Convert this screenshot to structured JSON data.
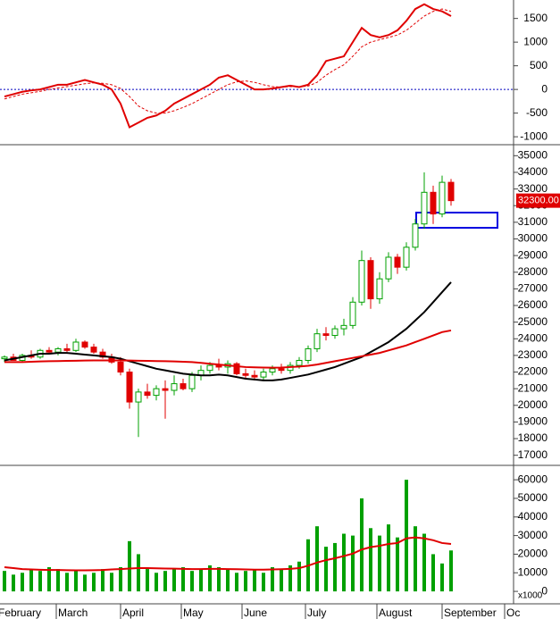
{
  "chart_data": [
    {
      "type": "line",
      "ylim": [
        -1130,
        1890
      ],
      "yticks": [
        -1000,
        -500,
        0,
        500,
        1000,
        1500
      ],
      "reference_line": 0,
      "reference_color": "#0000c0",
      "series": [
        {
          "color": "#e00000",
          "values": [
            -150,
            -100,
            -50,
            -20,
            0,
            50,
            100,
            100,
            150,
            200,
            150,
            100,
            0,
            -300,
            -800,
            -700,
            -600,
            -550,
            -450,
            -300,
            -200,
            -100,
            0,
            100,
            250,
            300,
            200,
            100,
            0,
            0,
            20,
            50,
            80,
            50,
            100,
            300,
            600,
            650,
            700,
            1000,
            1300,
            1150,
            1100,
            1150,
            1250,
            1450,
            1700,
            1800,
            1700,
            1650,
            1550
          ]
        },
        {
          "color": "#e00000",
          "dashed": true,
          "values": [
            -200,
            -150,
            -100,
            -70,
            -40,
            0,
            30,
            60,
            90,
            120,
            140,
            130,
            100,
            20,
            -150,
            -350,
            -450,
            -500,
            -500,
            -450,
            -380,
            -300,
            -200,
            -100,
            0,
            100,
            160,
            180,
            150,
            100,
            60,
            50,
            60,
            60,
            70,
            150,
            300,
            420,
            520,
            700,
            900,
            1000,
            1050,
            1100,
            1150,
            1250,
            1400,
            1550,
            1650,
            1700,
            1650
          ]
        }
      ]
    },
    {
      "type": "candlestick",
      "ylim": [
        16500,
        35500
      ],
      "yticks": [
        17000,
        18000,
        19000,
        20000,
        21000,
        22000,
        23000,
        24000,
        25000,
        26000,
        27000,
        28000,
        29000,
        30000,
        31000,
        32000,
        33000,
        34000,
        35000
      ],
      "up_color": "#00a000",
      "down_color": "#e00000",
      "last_price_label": "32300.00",
      "open": [
        22800,
        22900,
        22700,
        23000,
        22900,
        23300,
        23200,
        23400,
        23300,
        23800,
        23500,
        23200,
        22900,
        22600,
        22000,
        20200,
        20800,
        20600,
        21000,
        20900,
        21300,
        21000,
        21800,
        22100,
        22400,
        22300,
        22500,
        21900,
        21800,
        21700,
        22000,
        22200,
        22100,
        22400,
        22700,
        23400,
        24300,
        24200,
        24600,
        24800,
        26200,
        28700,
        26400,
        27600,
        28900,
        28300,
        29500,
        30900,
        32800,
        31500,
        33400
      ],
      "high": [
        23000,
        23100,
        23100,
        23300,
        23400,
        23500,
        23500,
        23700,
        24000,
        23900,
        23700,
        23400,
        23100,
        22900,
        22200,
        21000,
        21300,
        21200,
        21500,
        21800,
        21600,
        22000,
        22400,
        22600,
        22800,
        22700,
        22600,
        22200,
        22100,
        22200,
        22400,
        22500,
        22600,
        22900,
        23600,
        24600,
        24700,
        24800,
        25200,
        26500,
        29300,
        28900,
        28000,
        29200,
        29100,
        29800,
        31200,
        34000,
        33200,
        33800,
        33600
      ],
      "low": [
        22600,
        22700,
        22600,
        22800,
        22800,
        23100,
        23000,
        23200,
        23200,
        23400,
        23100,
        22800,
        22500,
        21800,
        19800,
        18100,
        20400,
        20300,
        19200,
        20600,
        20900,
        20800,
        21500,
        21900,
        22100,
        21900,
        21800,
        21600,
        21500,
        21500,
        21800,
        21900,
        21900,
        22200,
        22500,
        23200,
        23900,
        24000,
        24200,
        24600,
        26000,
        25800,
        26100,
        27400,
        27900,
        28100,
        29300,
        30600,
        30900,
        31300,
        32000
      ],
      "close": [
        22900,
        22700,
        23000,
        22900,
        23300,
        23200,
        23400,
        23300,
        23800,
        23500,
        23200,
        22900,
        22600,
        22000,
        20200,
        20800,
        20600,
        21000,
        20900,
        21300,
        21000,
        21800,
        22100,
        22400,
        22300,
        22500,
        21900,
        21800,
        21700,
        22000,
        22200,
        22100,
        22400,
        22700,
        23400,
        24300,
        24200,
        24600,
        24800,
        26200,
        28700,
        26400,
        27600,
        28900,
        28300,
        29500,
        30900,
        32800,
        31500,
        33400,
        32300
      ],
      "series": [
        {
          "color": "#000000",
          "values": [
            22700,
            22800,
            22900,
            23000,
            23100,
            23100,
            23150,
            23150,
            23100,
            23050,
            23000,
            22950,
            22900,
            22800,
            22650,
            22500,
            22350,
            22200,
            22100,
            22000,
            21900,
            21850,
            21800,
            21800,
            21850,
            21800,
            21700,
            21600,
            21550,
            21500,
            21500,
            21550,
            21650,
            21750,
            21850,
            22000,
            22150,
            22300,
            22500,
            22700,
            22900,
            23200,
            23500,
            23800,
            24200,
            24600,
            25100,
            25600,
            26200,
            26800,
            27400
          ]
        },
        {
          "color": "#e00000",
          "values": [
            22600,
            22600,
            22600,
            22620,
            22640,
            22650,
            22660,
            22670,
            22680,
            22690,
            22700,
            22700,
            22700,
            22700,
            22690,
            22680,
            22670,
            22660,
            22650,
            22640,
            22620,
            22600,
            22550,
            22500,
            22450,
            22400,
            22350,
            22300,
            22280,
            22270,
            22260,
            22270,
            22300,
            22330,
            22380,
            22450,
            22550,
            22650,
            22750,
            22850,
            22950,
            23050,
            23150,
            23300,
            23450,
            23600,
            23800,
            24000,
            24200,
            24400,
            24500
          ]
        }
      ]
    },
    {
      "type": "bar",
      "ylim": [
        -3800,
        66300
      ],
      "yticks": [
        0,
        10000,
        20000,
        30000,
        40000,
        50000,
        60000
      ],
      "unit_label": "x1000",
      "color": "#00a000",
      "x": [
        0.5,
        1.5,
        2.5,
        3.5,
        4.5,
        5.5,
        6.5,
        7.5,
        8.5,
        9.5,
        10.5,
        11.5,
        12.5,
        13.5,
        14.5,
        15.5,
        16.5,
        17.5,
        18.5,
        19.5,
        20.5,
        21.5,
        22.5,
        23.5,
        24.5,
        25.5,
        26.5,
        27.5,
        28.5,
        29.5,
        30.5,
        31.5,
        32.5,
        33.5,
        34.5,
        35.5,
        36.5,
        37.5,
        38.5,
        39.5,
        40.5,
        41.5,
        42.5,
        43.5,
        44.5,
        45.5,
        46.5,
        47.5,
        48.5,
        49.5,
        50.5
      ],
      "xlim": [
        0,
        57.5
      ],
      "xticks": [
        {
          "value": -0.4,
          "label": "February"
        },
        {
          "value": 6.3,
          "label": "March"
        },
        {
          "value": 13.5,
          "label": "April"
        },
        {
          "value": 20.3,
          "label": "May"
        },
        {
          "value": 27.1,
          "label": "June"
        },
        {
          "value": 34.2,
          "label": "July"
        },
        {
          "value": 42.2,
          "label": "August"
        },
        {
          "value": 49.5,
          "label": "September"
        },
        {
          "value": 56.5,
          "label": "Oc"
        }
      ],
      "values": [
        11000,
        9000,
        10000,
        12000,
        11000,
        13000,
        12000,
        10000,
        11000,
        9000,
        10000,
        12000,
        10000,
        13000,
        27000,
        20000,
        12000,
        10000,
        11000,
        12000,
        13000,
        11000,
        12000,
        14000,
        13000,
        12000,
        10000,
        11000,
        12000,
        10000,
        13000,
        12000,
        14000,
        16000,
        28000,
        35000,
        24000,
        26000,
        31000,
        30000,
        50000,
        34000,
        30000,
        36000,
        29000,
        60000,
        35000,
        31000,
        20000,
        15000,
        22000
      ],
      "series": [
        {
          "color": "#e00000",
          "values": [
            13000,
            12500,
            12000,
            11800,
            11600,
            11500,
            11500,
            11400,
            11300,
            11300,
            11400,
            11500,
            11800,
            12000,
            12300,
            12500,
            12500,
            12400,
            12300,
            12200,
            12100,
            12000,
            12000,
            12100,
            12100,
            12000,
            11900,
            11800,
            11700,
            11700,
            11800,
            11900,
            12100,
            12500,
            13800,
            15500,
            16800,
            17800,
            19000,
            20300,
            22500,
            23800,
            24500,
            25500,
            26000,
            28500,
            29000,
            28500,
            27500,
            26000,
            25500
          ]
        }
      ]
    }
  ]
}
